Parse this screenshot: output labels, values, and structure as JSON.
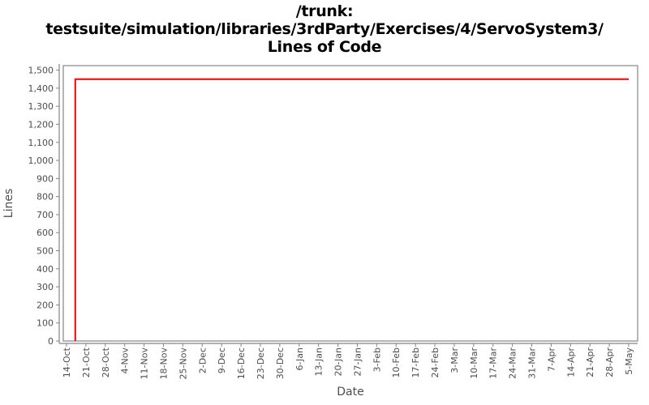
{
  "title": {
    "line1": "/trunk:",
    "line2": "testsuite/simulation/libraries/3rdParty/Exercises/4/ServoSystem3/",
    "line3": "Lines of Code"
  },
  "colors": {
    "series": "#ee0000",
    "axis": "#848484",
    "tick_label": "#4d4d4d",
    "axis_title": "#4d4d4d",
    "title": "#000000",
    "background": "#ffffff"
  },
  "chart_data": {
    "type": "line",
    "title": "/trunk: testsuite/simulation/libraries/3rdParty/Exercises/4/ServoSystem3/ Lines of Code",
    "xlabel": "Date",
    "ylabel": "Lines",
    "grid": false,
    "legend": "none",
    "ylim": [
      0,
      1525
    ],
    "x_tick_labels": [
      "14-Oct",
      "21-Oct",
      "28-Oct",
      "4-Nov",
      "11-Nov",
      "18-Nov",
      "25-Nov",
      "2-Dec",
      "9-Dec",
      "16-Dec",
      "23-Dec",
      "30-Dec",
      "6-Jan",
      "13-Jan",
      "20-Jan",
      "27-Jan",
      "3-Feb",
      "10-Feb",
      "17-Feb",
      "24-Feb",
      "3-Mar",
      "10-Mar",
      "17-Mar",
      "24-Mar",
      "31-Mar",
      "7-Apr",
      "14-Apr",
      "21-Apr",
      "28-Apr",
      "5-May"
    ],
    "y_ticks": [
      {
        "value": 0,
        "label": "0"
      },
      {
        "value": 100,
        "label": "100"
      },
      {
        "value": 200,
        "label": "200"
      },
      {
        "value": 300,
        "label": "300"
      },
      {
        "value": 400,
        "label": "400"
      },
      {
        "value": 500,
        "label": "500"
      },
      {
        "value": 600,
        "label": "600"
      },
      {
        "value": 700,
        "label": "700"
      },
      {
        "value": 800,
        "label": "800"
      },
      {
        "value": 900,
        "label": "900"
      },
      {
        "value": 1000,
        "label": "1,000"
      },
      {
        "value": 1100,
        "label": "1,100"
      },
      {
        "value": 1200,
        "label": "1,200"
      },
      {
        "value": 1300,
        "label": "1,300"
      },
      {
        "value": 1400,
        "label": "1,400"
      },
      {
        "value": 1500,
        "label": "1,500"
      }
    ],
    "series": [
      {
        "name": "Lines of Code",
        "color": "#ee0000",
        "points": [
          {
            "date": "17-Oct",
            "week": 0.45,
            "value": 0
          },
          {
            "date": "17-Oct",
            "week": 0.45,
            "value": 1450
          },
          {
            "date": "5-May",
            "week": 29,
            "value": 1450
          }
        ]
      }
    ]
  }
}
